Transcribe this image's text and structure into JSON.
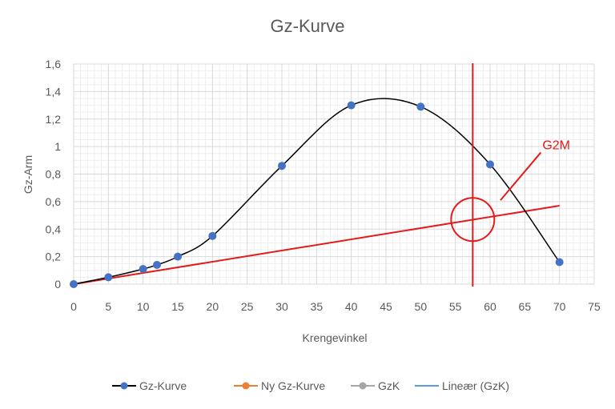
{
  "chart_data": {
    "type": "line",
    "title": "Gz-Kurve",
    "xlabel": "Krengevinkel",
    "ylabel": "Gz-Arm",
    "xlim": [
      0,
      75
    ],
    "ylim": [
      0,
      1.6
    ],
    "x_ticks": [
      "0",
      "5",
      "10",
      "15",
      "20",
      "25",
      "30",
      "35",
      "40",
      "45",
      "50",
      "55",
      "60",
      "65",
      "70",
      "75"
    ],
    "y_ticks": [
      "0",
      "0,2",
      "0,4",
      "0,6",
      "0,8",
      "1",
      "1,2",
      "1,4",
      "1,6"
    ],
    "grid": true,
    "series": [
      {
        "name": "Gz-Kurve",
        "color": "#4472c4",
        "line_color": "#000000",
        "smooth": true,
        "points": [
          [
            0,
            0
          ],
          [
            5,
            0.05
          ],
          [
            10,
            0.11
          ],
          [
            12,
            0.14
          ],
          [
            15,
            0.2
          ],
          [
            20,
            0.35
          ],
          [
            30,
            0.86
          ],
          [
            40,
            1.3
          ],
          [
            50,
            1.29
          ],
          [
            60,
            0.87
          ],
          [
            70,
            0.16
          ]
        ]
      },
      {
        "name": "Ny Gz-Kurve",
        "color": "#ed7d31",
        "points": []
      },
      {
        "name": "GzK",
        "color": "#a5a5a5",
        "points": []
      },
      {
        "name": "Lineær (GzK)",
        "color": "#5b9bd5",
        "points": []
      }
    ],
    "red_line": {
      "color": "#e31b1b",
      "points": [
        [
          0,
          0
        ],
        [
          70,
          0.57
        ]
      ]
    },
    "vertical_line": {
      "color": "#e31b1b",
      "x": 57.5
    },
    "circle": {
      "color": "#e31b1b",
      "x": 57.5,
      "y": 0.47
    },
    "annotation": {
      "text": "G2M",
      "x": 68,
      "y": 0.98,
      "pointer_to": [
        61.5,
        0.61
      ]
    },
    "legend_position": "bottom"
  }
}
